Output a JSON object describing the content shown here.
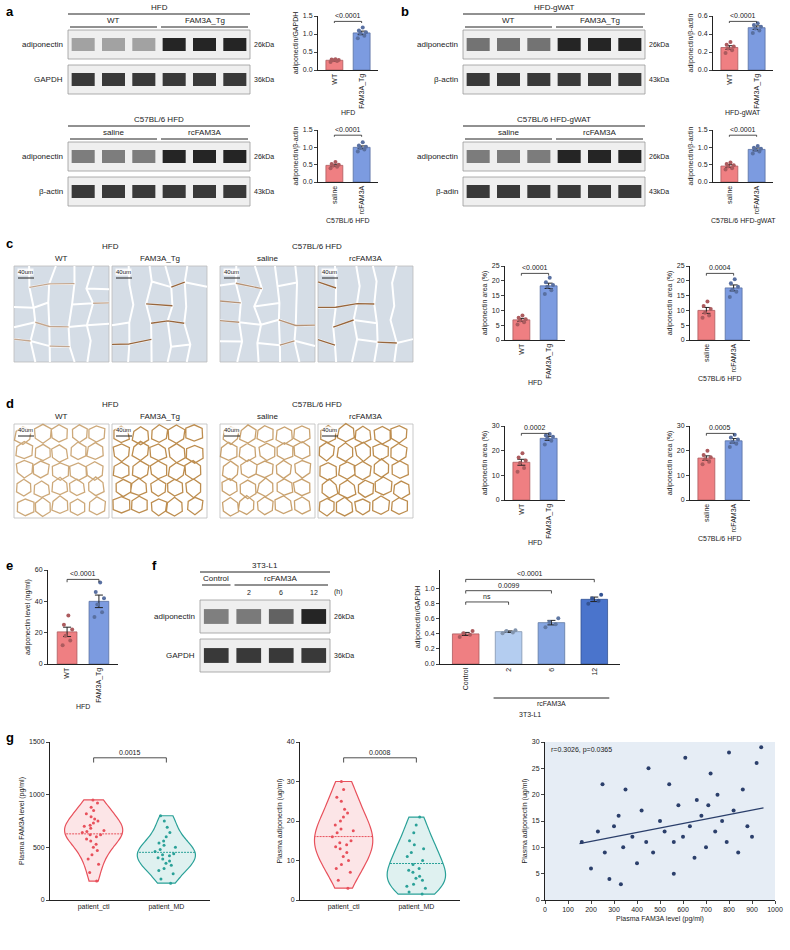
{
  "chart_data": [
    {
      "panel": "a",
      "type": "bar",
      "categories": [
        "WT",
        "FAM3A_Tg"
      ],
      "values": [
        0.27,
        1.03
      ],
      "errors": [
        0.02,
        0.05
      ],
      "points": [
        [
          0.22,
          0.25,
          0.27,
          0.28,
          0.29,
          0.3
        ],
        [
          0.88,
          0.95,
          1.02,
          1.05,
          1.1,
          1.18
        ]
      ],
      "colors": [
        "#ef7f82",
        "#7c9be0"
      ],
      "y_label": "adiponectin/GAPDH",
      "ylim": [
        0,
        1.5
      ],
      "yticks": [
        {
          "value": 0,
          "label": "0.0"
        },
        0.5,
        {
          "value": 1,
          "label": "1.0"
        },
        1.5
      ],
      "group_label": "HFD",
      "comparisons": [
        {
          "between": [
            "WT",
            "FAM3A_Tg"
          ],
          "label": "<0.0001"
        }
      ],
      "blot": {
        "header": "HFD",
        "groups": [
          {
            "label": "WT",
            "lanes": 3
          },
          {
            "label": "FAM3A_Tg",
            "lanes": 3
          }
        ],
        "rows": [
          {
            "label": "adiponectin",
            "kda": "26kDa"
          },
          {
            "label": "GAPDH",
            "kda": "36kDa"
          }
        ]
      }
    },
    {
      "panel": "a",
      "type": "bar",
      "categories": [
        "saline",
        "rcFAM3A"
      ],
      "values": [
        0.48,
        1.0
      ],
      "errors": [
        0.03,
        0.04
      ],
      "points": [
        [
          0.4,
          0.44,
          0.47,
          0.5,
          0.52,
          0.58
        ],
        [
          0.88,
          0.94,
          0.98,
          1.02,
          1.05,
          1.15
        ]
      ],
      "colors": [
        "#ef7f82",
        "#7c9be0"
      ],
      "y_label": "adiponectin/β-actin",
      "ylim": [
        0,
        1.5
      ],
      "yticks": [
        {
          "value": 0,
          "label": "0.0"
        },
        0.5,
        {
          "value": 1,
          "label": "1.0"
        },
        1.5
      ],
      "group_label": "C57BL/6 HFD",
      "comparisons": [
        {
          "between": [
            "saline",
            "rcFAM3A"
          ],
          "label": "<0.0001"
        }
      ],
      "blot": {
        "header": "C57BL/6 HFD",
        "groups": [
          {
            "label": "saline",
            "lanes": 3
          },
          {
            "label": "rcFAM3A",
            "lanes": 3
          }
        ],
        "rows": [
          {
            "label": "adiponectin",
            "kda": "26kDa"
          },
          {
            "label": "β-actin",
            "kda": "43kDa"
          }
        ]
      }
    },
    {
      "panel": "b",
      "type": "bar",
      "categories": [
        "WT",
        "FAM3A_Tg"
      ],
      "values": [
        0.25,
        0.47
      ],
      "errors": [
        0.02,
        0.02
      ],
      "points": [
        [
          0.19,
          0.22,
          0.24,
          0.26,
          0.28,
          0.31
        ],
        [
          0.41,
          0.44,
          0.46,
          0.48,
          0.5,
          0.52
        ]
      ],
      "colors": [
        "#ef7f82",
        "#7c9be0"
      ],
      "y_label": "adiponectin/β-actin",
      "ylim": [
        0,
        0.6
      ],
      "yticks": [
        {
          "value": 0,
          "label": "0.0"
        },
        0.2,
        0.4,
        0.6
      ],
      "group_label": "HFD-gWAT",
      "comparisons": [
        {
          "between": [
            "WT",
            "FAM3A_Tg"
          ],
          "label": "<0.0001"
        }
      ],
      "blot": {
        "header": "HFD-gWAT",
        "groups": [
          {
            "label": "WT",
            "lanes": 3
          },
          {
            "label": "FAM3A_Tg",
            "lanes": 3
          }
        ],
        "rows": [
          {
            "label": "adiponectin",
            "kda": "26kDa"
          },
          {
            "label": "β-actin",
            "kda": "43kDa"
          }
        ]
      }
    },
    {
      "panel": "b",
      "type": "bar",
      "categories": [
        "saline",
        "rcFAM3A"
      ],
      "values": [
        0.46,
        0.94
      ],
      "errors": [
        0.04,
        0.04
      ],
      "points": [
        [
          0.36,
          0.4,
          0.45,
          0.48,
          0.52,
          0.56
        ],
        [
          0.82,
          0.88,
          0.93,
          0.96,
          0.99,
          1.04
        ]
      ],
      "colors": [
        "#ef7f82",
        "#7c9be0"
      ],
      "y_label": "adiponectin/β-actin",
      "ylim": [
        0,
        1.5
      ],
      "yticks": [
        {
          "value": 0,
          "label": "0.0"
        },
        0.5,
        {
          "value": 1,
          "label": "1.0"
        },
        1.5
      ],
      "group_label": "C57BL/6 HFD-gWAT",
      "comparisons": [
        {
          "between": [
            "saline",
            "rcFAM3A"
          ],
          "label": "<0.0001"
        }
      ],
      "blot": {
        "header": "C57BL/6 HFD-gWAT",
        "groups": [
          {
            "label": "saline",
            "lanes": 3
          },
          {
            "label": "rcFAM3A",
            "lanes": 3
          }
        ],
        "rows": [
          {
            "label": "adiponectin",
            "kda": "26kDa"
          },
          {
            "label": "β-adin",
            "kda": "43kDa"
          }
        ]
      }
    },
    {
      "panel": "c",
      "type": "bar",
      "categories": [
        "WT",
        "FAM3A_Tg"
      ],
      "values": [
        6.8,
        18.3
      ],
      "errors": [
        0.5,
        0.9
      ],
      "points": [
        [
          5.2,
          6.0,
          6.6,
          7.0,
          7.5,
          8.3
        ],
        [
          15.5,
          16.8,
          18.0,
          18.6,
          19.5,
          21.0
        ]
      ],
      "colors": [
        "#ef7f82",
        "#7c9be0"
      ],
      "y_label": "adiponectin area (%)",
      "ylim": [
        0,
        25
      ],
      "yticks": [
        0,
        5,
        10,
        15,
        20,
        25
      ],
      "group_label": "HFD",
      "comparisons": [
        {
          "between": [
            "WT",
            "FAM3A_Tg"
          ],
          "label": "<0.0001"
        }
      ],
      "micrograph": {
        "header": "HFD",
        "groups": [
          "WT",
          "FAM3A_Tg"
        ],
        "scale_bar": "40um"
      }
    },
    {
      "panel": "c",
      "type": "bar",
      "categories": [
        "saline",
        "rcFAM3A"
      ],
      "values": [
        10.0,
        17.6
      ],
      "errors": [
        1.0,
        1.0
      ],
      "points": [
        [
          7.5,
          8.3,
          9.2,
          10.5,
          11.5,
          13.0
        ],
        [
          14.5,
          16.3,
          17.0,
          18.0,
          19.2,
          20.5
        ]
      ],
      "colors": [
        "#ef7f82",
        "#7c9be0"
      ],
      "y_label": "adiponectin area (%)",
      "ylim": [
        0,
        25
      ],
      "yticks": [
        0,
        5,
        10,
        15,
        20,
        25
      ],
      "group_label": "C57BL/6 HFD",
      "comparisons": [
        {
          "between": [
            "saline",
            "rcFAM3A"
          ],
          "label": "0.0004"
        }
      ],
      "micrograph": {
        "header": "C57BL/6 HFD",
        "groups": [
          "saline",
          "rcFAM3A"
        ],
        "scale_bar": "40um"
      }
    },
    {
      "panel": "d",
      "type": "bar",
      "categories": [
        "WT",
        "FAM3A_Tg"
      ],
      "values": [
        15.3,
        25.0
      ],
      "errors": [
        1.2,
        0.8
      ],
      "points": [
        [
          11.5,
          13.0,
          15.0,
          16.0,
          17.2,
          19.0
        ],
        [
          22.5,
          24.0,
          25.0,
          25.6,
          26.2,
          26.8
        ]
      ],
      "colors": [
        "#ef7f82",
        "#7c9be0"
      ],
      "y_label": "adiponectin area (%)",
      "ylim": [
        0,
        30
      ],
      "yticks": [
        0,
        10,
        20,
        30
      ],
      "group_label": "HFD",
      "comparisons": [
        {
          "between": [
            "WT",
            "FAM3A_Tg"
          ],
          "label": "0.0002"
        }
      ],
      "micrograph": {
        "header": "HFD",
        "groups": [
          "WT",
          "FAM3A_Tg"
        ],
        "scale_bar": "40um"
      }
    },
    {
      "panel": "d",
      "type": "bar",
      "categories": [
        "saline",
        "rcFAM3A"
      ],
      "values": [
        17.0,
        24.0
      ],
      "errors": [
        0.9,
        0.9
      ],
      "points": [
        [
          14.5,
          15.5,
          16.5,
          17.3,
          18.2,
          20.0
        ],
        [
          21.5,
          22.8,
          23.5,
          24.5,
          25.3,
          26.5
        ]
      ],
      "colors": [
        "#ef7f82",
        "#7c9be0"
      ],
      "y_label": "adiponectin area (%)",
      "ylim": [
        0,
        30
      ],
      "yticks": [
        0,
        10,
        20,
        30
      ],
      "group_label": "C57BL/6 HFD",
      "comparisons": [
        {
          "between": [
            "saline",
            "rcFAM3A"
          ],
          "label": "0.0005"
        }
      ],
      "micrograph": {
        "header": "C57BL/6 HFD",
        "groups": [
          "saline",
          "rcFAM3A"
        ],
        "scale_bar": "40um"
      }
    },
    {
      "panel": "e",
      "type": "bar",
      "categories": [
        "WT",
        "FAM3A_Tg"
      ],
      "values": [
        20.5,
        40.0
      ],
      "errors": [
        3.0,
        4.0
      ],
      "points": [
        [
          12,
          15,
          18,
          22,
          25,
          31
        ],
        [
          30,
          33,
          38,
          42,
          46,
          52
        ]
      ],
      "colors": [
        "#ef7f82",
        "#7c9be0"
      ],
      "y_label": "adiponectin level (ng/ml)",
      "ylim": [
        0,
        60
      ],
      "yticks": [
        0,
        20,
        40,
        60
      ],
      "group_label": "HFD",
      "comparisons": [
        {
          "between": [
            "WT",
            "FAM3A_Tg"
          ],
          "label": "<0.0001"
        }
      ]
    },
    {
      "panel": "f",
      "type": "bar",
      "categories": [
        "Control",
        "2",
        "6",
        "12"
      ],
      "values": [
        0.4,
        0.43,
        0.55,
        0.86
      ],
      "errors": [
        0.02,
        0.01,
        0.03,
        0.03
      ],
      "points": [
        [
          0.36,
          0.39,
          0.41,
          0.44
        ],
        [
          0.41,
          0.42,
          0.44,
          0.45
        ],
        [
          0.49,
          0.53,
          0.56,
          0.61
        ],
        [
          0.8,
          0.84,
          0.87,
          0.92
        ]
      ],
      "colors": [
        "#ef7f82",
        "#b4cdf0",
        "#86a6e2",
        "#4a74cc"
      ],
      "y_label": "adiponectin/GAPDH",
      "ylim": [
        0,
        1.25
      ],
      "yticks": [
        {
          "value": 0,
          "label": "0.0"
        },
        0.2,
        0.4,
        0.6,
        0.8,
        {
          "value": 1,
          "label": "1.0"
        }
      ],
      "group_labels": [
        {
          "label": "rcFAM3A",
          "from": "2",
          "to": "12"
        }
      ],
      "group_label": "3T3-L1",
      "comparisons": [
        {
          "between": [
            "Control",
            "2"
          ],
          "label": "ns"
        },
        {
          "between": [
            "Control",
            "6"
          ],
          "label": "0.0099"
        },
        {
          "between": [
            "Control",
            "12"
          ],
          "label": "<0.0001"
        }
      ],
      "blot": {
        "header": "3T3-L1",
        "groups": [
          {
            "label": "Control",
            "lanes": 1
          },
          {
            "label": "rcFAM3A",
            "lanes": 3
          }
        ],
        "lane_labels": {
          "labels": [
            "2",
            "6",
            "12"
          ],
          "unit": "(h)"
        },
        "rows": [
          {
            "label": "adiponectin",
            "kda": "26kDa"
          },
          {
            "label": "GAPDH",
            "kda": "36kDa"
          }
        ]
      }
    },
    {
      "panel": "g",
      "type": "violin",
      "categories": [
        "patient_ctl",
        "patient_MD"
      ],
      "points": [
        [
          180,
          260,
          340,
          390,
          430,
          470,
          500,
          530,
          560,
          580,
          600,
          620,
          640,
          650,
          660,
          680,
          700,
          710,
          730,
          750,
          770,
          790,
          820,
          850,
          880,
          920,
          950,
          620
        ],
        [
          160,
          200,
          250,
          280,
          300,
          330,
          350,
          370,
          390,
          400,
          420,
          430,
          440,
          460,
          480,
          500,
          520,
          540,
          560,
          600,
          640,
          690,
          750,
          800
        ]
      ],
      "colors": [
        "#e8505b",
        "#2aa198"
      ],
      "y_label": "Plasma FAM3A level (pg/ml)",
      "ylim": [
        0,
        1500
      ],
      "yticks": [
        0,
        500,
        1000,
        1500
      ],
      "comparisons": [
        {
          "between": [
            "patient_ctl",
            "patient_MD"
          ],
          "label": "0.0015"
        }
      ]
    },
    {
      "panel": "g",
      "type": "violin",
      "categories": [
        "patient_ctl",
        "patient_MD"
      ],
      "points": [
        [
          3,
          5,
          7,
          8,
          9,
          10,
          11,
          12,
          13,
          13.5,
          14,
          14.5,
          15,
          16,
          17,
          17.5,
          18,
          19,
          20,
          21,
          22,
          23,
          25,
          26,
          28,
          30
        ],
        [
          1.5,
          2,
          3,
          3.5,
          4,
          5,
          5.5,
          6,
          7,
          7.5,
          8,
          9,
          10,
          11,
          12,
          13,
          14,
          15,
          17,
          19,
          21
        ]
      ],
      "colors": [
        "#e8505b",
        "#2aa198"
      ],
      "y_label": "Plasma adiponectin (ug/ml)",
      "ylim": [
        0,
        40
      ],
      "yticks": [
        0,
        10,
        20,
        30,
        40
      ],
      "comparisons": [
        {
          "between": [
            "patient_ctl",
            "patient_MD"
          ],
          "label": "0.0008"
        }
      ]
    },
    {
      "panel": "g",
      "type": "scatter",
      "x": [
        160,
        200,
        230,
        260,
        280,
        300,
        320,
        340,
        350,
        380,
        400,
        420,
        440,
        450,
        470,
        500,
        520,
        540,
        560,
        580,
        600,
        610,
        630,
        650,
        660,
        680,
        700,
        720,
        740,
        750,
        770,
        790,
        800,
        820,
        840,
        860,
        880,
        900,
        920,
        940,
        330,
        560,
        710,
        250
      ],
      "values": [
        11,
        6,
        13,
        9,
        4,
        14,
        16,
        10,
        21,
        12,
        7,
        17,
        11,
        25,
        9,
        15,
        13,
        22,
        5,
        18,
        12,
        27,
        14,
        8,
        19,
        16,
        10,
        24,
        13,
        20,
        15,
        11,
        28,
        17,
        9,
        21,
        14,
        12,
        26,
        29,
        3,
        11,
        18,
        22
      ],
      "color": "#2b3f6b",
      "x_label": "Plasma FAM3A level (pg/ml)",
      "y_label": "Plasma adiponectin (ug/ml)",
      "xlim": [
        0,
        1000
      ],
      "xticks": [
        0,
        100,
        200,
        300,
        400,
        500,
        600,
        700,
        800,
        900,
        1000
      ],
      "ylim": [
        0,
        30
      ],
      "yticks": [
        0,
        5,
        10,
        15,
        20,
        25,
        30
      ],
      "trend_line": {
        "x": [
          150,
          950
        ],
        "values": [
          10.7,
          17.5
        ]
      },
      "annotation": "r=0.3026, p=0.0365"
    }
  ]
}
